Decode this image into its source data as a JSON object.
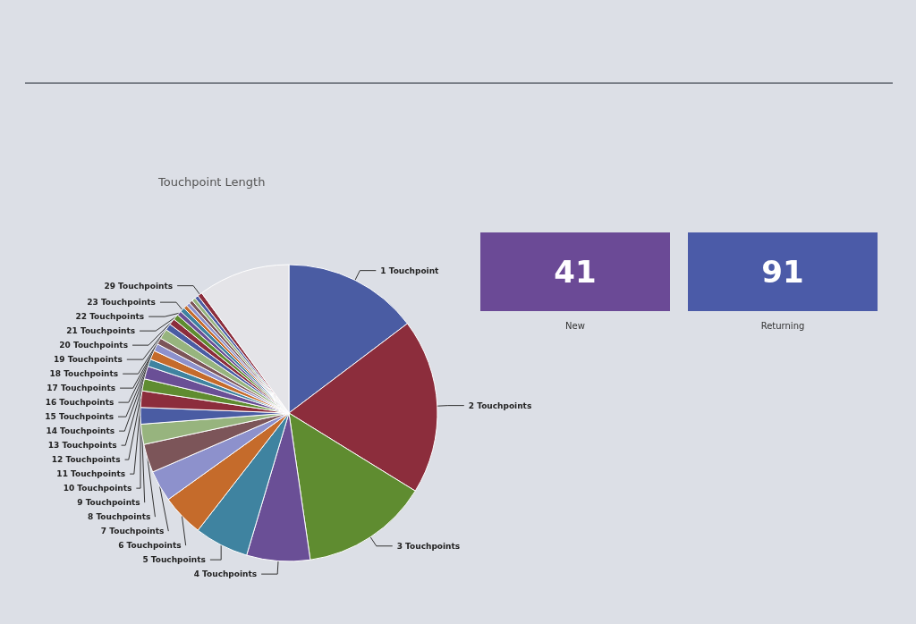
{
  "chart_data": [
    {
      "type": "pie",
      "title": "Touchpoint Length",
      "categories": [
        "1 Touchpoint",
        "2 Touchpoints",
        "3 Touchpoints",
        "4 Touchpoints",
        "5 Touchpoints",
        "6 Touchpoints",
        "7 Touchpoints",
        "8 Touchpoints",
        "9 Touchpoints",
        "10 Touchpoints",
        "11 Touchpoints",
        "12 Touchpoints",
        "13 Touchpoints",
        "14 Touchpoints",
        "15 Touchpoints",
        "16 Touchpoints",
        "17 Touchpoints",
        "18 Touchpoints",
        "19 Touchpoints",
        "20 Touchpoints",
        "21 Touchpoints",
        "22 Touchpoints",
        "23 Touchpoints",
        null,
        null,
        null,
        null,
        null,
        "29 Touchpoints",
        null
      ],
      "values": [
        14.7,
        19.1,
        13.9,
        6.9,
        5.9,
        4.6,
        3.4,
        3.1,
        2.2,
        1.8,
        1.8,
        1.3,
        1.4,
        0.8,
        1.0,
        0.8,
        0.7,
        1.1,
        0.7,
        0.7,
        0.6,
        0.5,
        0.5,
        0.4,
        0.4,
        0.4,
        0.4,
        0.4,
        0.5,
        10.0
      ],
      "colors": [
        "#4a5ca3",
        "#8c2d3c",
        "#5f8c30",
        "#6a4f96",
        "#3f83a0",
        "#c56b2b",
        "#8d91cc",
        "#7c5559",
        "#97b47e",
        "#4a5ca3",
        "#8c2d3c",
        "#5f8c30",
        "#6a4f96",
        "#3f83a0",
        "#c56b2b",
        "#8d91cc",
        "#7c5559",
        "#97b47e",
        "#4a5ca3",
        "#8c2d3c",
        "#5f8c30",
        "#6a4f96",
        "#3f83a0",
        "#c56b2b",
        "#8d91cc",
        "#7c5559",
        "#97b47e",
        "#4a5ca3",
        "#8c2d3c",
        "#e4e4e8"
      ]
    },
    {
      "type": "other",
      "categories": [
        "New",
        "Returning"
      ],
      "values": [
        41,
        91
      ],
      "colors": [
        "#6b4a96",
        "#4b5ba8"
      ],
      "data_labels": true
    }
  ]
}
